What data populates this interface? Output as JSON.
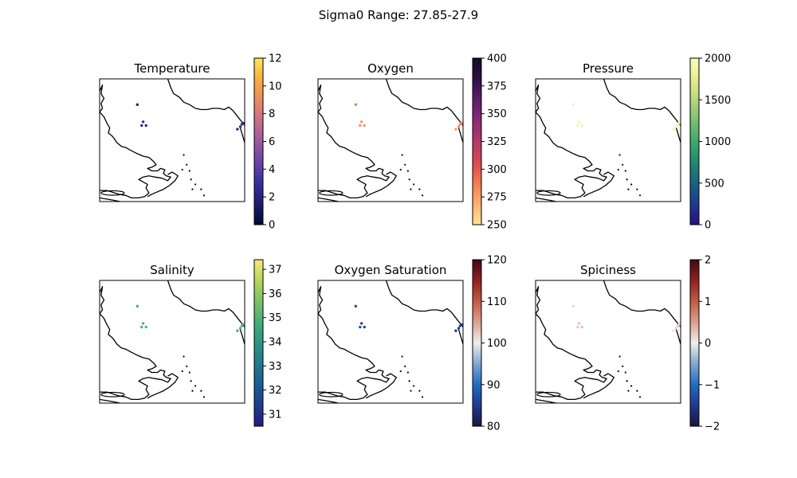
{
  "figure": {
    "suptitle": "Sigma0 Range: 27.85-27.9"
  },
  "chart_data": [
    {
      "type": "scatter",
      "title": "Temperature",
      "colormap": "plasma",
      "colorbar": {
        "min": 0,
        "max": 12,
        "ticks": [
          0,
          2,
          4,
          6,
          8,
          10,
          12
        ]
      },
      "points": [
        {
          "x": 0.26,
          "y": 0.79,
          "value": 2.0
        },
        {
          "x": 0.3,
          "y": 0.65,
          "value": 2.4
        },
        {
          "x": 0.29,
          "y": 0.62,
          "value": 2.2
        },
        {
          "x": 0.32,
          "y": 0.62,
          "value": 2.2
        },
        {
          "x": 0.95,
          "y": 0.59,
          "value": 2.4
        },
        {
          "x": 0.97,
          "y": 0.61,
          "value": 2.5
        },
        {
          "x": 0.98,
          "y": 0.63,
          "value": 2.6
        },
        {
          "x": 0.99,
          "y": 0.64,
          "value": 2.4
        }
      ]
    },
    {
      "type": "scatter",
      "title": "Oxygen",
      "colormap": "magma_r",
      "colorbar": {
        "min": 250,
        "max": 400,
        "ticks": [
          250,
          275,
          300,
          325,
          350,
          375,
          400
        ]
      },
      "points": [
        {
          "x": 0.26,
          "y": 0.79,
          "value": 285
        },
        {
          "x": 0.3,
          "y": 0.65,
          "value": 278
        },
        {
          "x": 0.29,
          "y": 0.62,
          "value": 280
        },
        {
          "x": 0.32,
          "y": 0.62,
          "value": 279
        },
        {
          "x": 0.95,
          "y": 0.59,
          "value": 276
        },
        {
          "x": 0.97,
          "y": 0.61,
          "value": 280
        },
        {
          "x": 0.98,
          "y": 0.63,
          "value": 283
        },
        {
          "x": 0.99,
          "y": 0.64,
          "value": 281
        }
      ]
    },
    {
      "type": "scatter",
      "title": "Pressure",
      "colormap": "summer_blue",
      "colorbar": {
        "min": 0,
        "max": 2000,
        "ticks": [
          0,
          500,
          1000,
          1500,
          2000
        ]
      },
      "points": [
        {
          "x": 0.26,
          "y": 0.79,
          "value": 1900
        },
        {
          "x": 0.3,
          "y": 0.65,
          "value": 1850
        },
        {
          "x": 0.29,
          "y": 0.62,
          "value": 1870
        },
        {
          "x": 0.32,
          "y": 0.62,
          "value": 1860
        },
        {
          "x": 0.95,
          "y": 0.59,
          "value": 1900
        },
        {
          "x": 0.97,
          "y": 0.61,
          "value": 1880
        },
        {
          "x": 0.98,
          "y": 0.63,
          "value": 1860
        },
        {
          "x": 0.99,
          "y": 0.64,
          "value": 1870
        }
      ]
    },
    {
      "type": "scatter",
      "title": "Salinity",
      "colormap": "viridis_like",
      "colorbar": {
        "min": 30.5,
        "max": 37.4,
        "ticks": [
          31,
          32,
          33,
          34,
          35,
          36,
          37
        ]
      },
      "points": [
        {
          "x": 0.26,
          "y": 0.79,
          "value": 34.9
        },
        {
          "x": 0.3,
          "y": 0.65,
          "value": 34.95
        },
        {
          "x": 0.29,
          "y": 0.62,
          "value": 34.9
        },
        {
          "x": 0.32,
          "y": 0.62,
          "value": 34.9
        },
        {
          "x": 0.95,
          "y": 0.59,
          "value": 34.9
        },
        {
          "x": 0.97,
          "y": 0.61,
          "value": 34.95
        },
        {
          "x": 0.98,
          "y": 0.63,
          "value": 34.9
        },
        {
          "x": 0.99,
          "y": 0.64,
          "value": 34.9
        }
      ]
    },
    {
      "type": "scatter",
      "title": "Oxygen Saturation",
      "colormap": "balance",
      "colorbar": {
        "min": 80,
        "max": 120,
        "ticks": [
          80,
          90,
          100,
          110,
          120
        ]
      },
      "points": [
        {
          "x": 0.26,
          "y": 0.79,
          "value": 87
        },
        {
          "x": 0.3,
          "y": 0.65,
          "value": 86
        },
        {
          "x": 0.29,
          "y": 0.62,
          "value": 87
        },
        {
          "x": 0.32,
          "y": 0.62,
          "value": 86
        },
        {
          "x": 0.95,
          "y": 0.59,
          "value": 84
        },
        {
          "x": 0.97,
          "y": 0.61,
          "value": 85
        },
        {
          "x": 0.98,
          "y": 0.63,
          "value": 86
        },
        {
          "x": 0.99,
          "y": 0.64,
          "value": 85
        }
      ]
    },
    {
      "type": "scatter",
      "title": "Spiciness",
      "colormap": "balance",
      "colorbar": {
        "min": -2,
        "max": 2,
        "ticks": [
          -2,
          -1,
          0,
          1,
          2
        ]
      },
      "tick_labels": [
        "−2",
        "−1",
        "0",
        "1",
        "2"
      ],
      "points": [
        {
          "x": 0.26,
          "y": 0.79,
          "value": 0.15
        },
        {
          "x": 0.3,
          "y": 0.65,
          "value": 0.3
        },
        {
          "x": 0.29,
          "y": 0.62,
          "value": 0.25
        },
        {
          "x": 0.32,
          "y": 0.62,
          "value": 0.3
        },
        {
          "x": 0.95,
          "y": 0.59,
          "value": 0.1
        },
        {
          "x": 0.97,
          "y": 0.61,
          "value": 0.2
        },
        {
          "x": 0.98,
          "y": 0.63,
          "value": 0.25
        },
        {
          "x": 0.99,
          "y": 0.64,
          "value": 0.2
        }
      ]
    }
  ]
}
